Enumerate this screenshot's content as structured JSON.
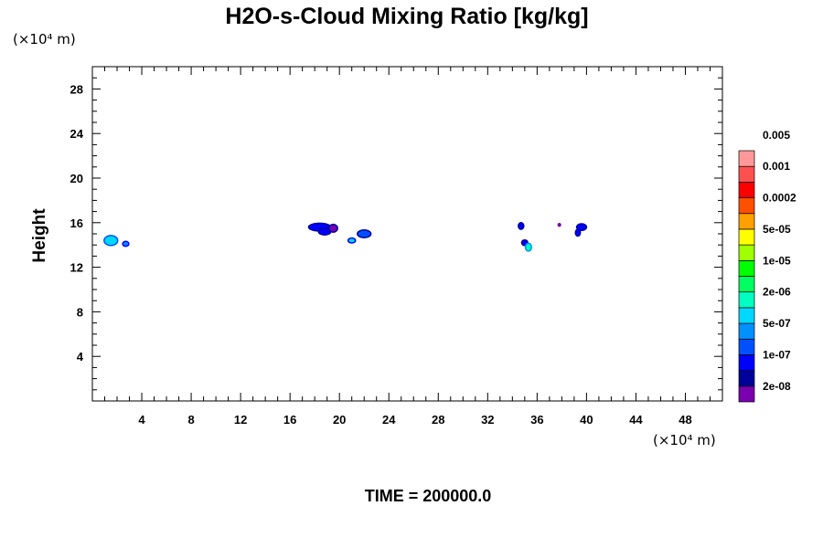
{
  "chart_data": {
    "type": "heatmap",
    "title": "H2O-s-Cloud Mixing Ratio [kg/kg]",
    "ylabel": "Height",
    "x_unit": "(×10⁴ m)",
    "y_unit": "(×10⁴ m)",
    "xlim": [
      0,
      51
    ],
    "ylim": [
      0,
      30
    ],
    "x_ticks": [
      4,
      8,
      12,
      16,
      20,
      24,
      28,
      32,
      36,
      40,
      44,
      48
    ],
    "y_ticks": [
      4,
      8,
      12,
      16,
      20,
      24,
      28
    ],
    "time_label": "TIME = 200000.0",
    "colorbar": {
      "colors": [
        "#7a00b0",
        "#00009a",
        "#0000ff",
        "#0050ff",
        "#0090ff",
        "#00d8ff",
        "#00ffc0",
        "#00ff60",
        "#00ff00",
        "#a0ff00",
        "#ffff00",
        "#ffa000",
        "#ff5000",
        "#ff0000",
        "#ff5050",
        "#ff9999"
      ],
      "labels": [
        "2e-08",
        "1e-07",
        "5e-07",
        "2e-06",
        "1e-05",
        "5e-05",
        "0.0002",
        "0.001",
        "0.005"
      ]
    },
    "clouds": [
      {
        "x": 1.5,
        "y": 14.4,
        "rx": 0.55,
        "ry": 0.45,
        "fill": "#00d8ff",
        "edge": "#0050ff"
      },
      {
        "x": 2.7,
        "y": 14.1,
        "rx": 0.25,
        "ry": 0.22,
        "fill": "#0090ff",
        "edge": "#0000ff"
      },
      {
        "x": 18.4,
        "y": 15.6,
        "rx": 0.9,
        "ry": 0.35,
        "fill": "#0000ff",
        "edge": "#00009a"
      },
      {
        "x": 18.8,
        "y": 15.2,
        "rx": 0.5,
        "ry": 0.3,
        "fill": "#0000ff",
        "edge": "#00009a"
      },
      {
        "x": 19.5,
        "y": 15.5,
        "rx": 0.35,
        "ry": 0.35,
        "fill": "#7a00b0",
        "edge": "#00009a"
      },
      {
        "x": 21.0,
        "y": 14.4,
        "rx": 0.3,
        "ry": 0.22,
        "fill": "#00d8ff",
        "edge": "#0000ff"
      },
      {
        "x": 22.0,
        "y": 15.0,
        "rx": 0.55,
        "ry": 0.35,
        "fill": "#0050ff",
        "edge": "#00009a"
      },
      {
        "x": 34.7,
        "y": 15.7,
        "rx": 0.22,
        "ry": 0.3,
        "fill": "#0000ff",
        "edge": "#00009a"
      },
      {
        "x": 35.0,
        "y": 14.2,
        "rx": 0.25,
        "ry": 0.25,
        "fill": "#0000ff",
        "edge": "#00009a"
      },
      {
        "x": 35.3,
        "y": 13.8,
        "rx": 0.25,
        "ry": 0.35,
        "fill": "#00ffc0",
        "edge": "#0090ff"
      },
      {
        "x": 37.8,
        "y": 15.8,
        "rx": 0.1,
        "ry": 0.12,
        "fill": "#7a00b0",
        "edge": "#7a00b0"
      },
      {
        "x": 39.6,
        "y": 15.6,
        "rx": 0.4,
        "ry": 0.3,
        "fill": "#0000ff",
        "edge": "#00009a"
      },
      {
        "x": 39.3,
        "y": 15.1,
        "rx": 0.2,
        "ry": 0.3,
        "fill": "#0000ff",
        "edge": "#00009a"
      }
    ]
  }
}
